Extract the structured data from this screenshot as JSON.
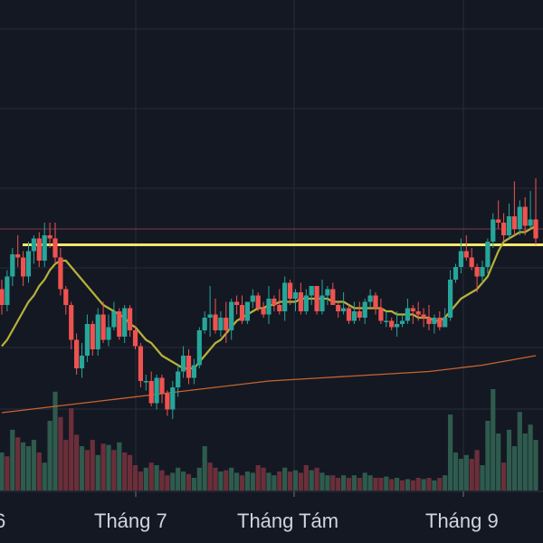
{
  "chart_data": {
    "type": "candlestick",
    "title": "",
    "x_tick_labels": [
      "6",
      "Tháng 7",
      "Tháng Tám",
      "Tháng 9"
    ],
    "grid": true,
    "colors": {
      "background": "#141823",
      "grid": "#262b38",
      "up": "#26a69a",
      "down": "#ef5350",
      "volume_up": "#2e5b4d",
      "volume_down": "#6b2f3a",
      "ma_short": "#b7b13a",
      "ma_long": "#c9632f",
      "resistance": "#f2e86b",
      "faint_level": "#7a3a4a"
    },
    "price_range": [
      0,
      100
    ],
    "volume_range": [
      0,
      100
    ],
    "resistance_level": 77,
    "faint_level": 82,
    "candles": [
      [
        0,
        63,
        58,
        66,
        55
      ],
      [
        1,
        58,
        67,
        69,
        56
      ],
      [
        2,
        67,
        74,
        76,
        64
      ],
      [
        3,
        74,
        73,
        80,
        70
      ],
      [
        4,
        73,
        67,
        75,
        64
      ],
      [
        5,
        67,
        75,
        78,
        65
      ],
      [
        6,
        75,
        79,
        80,
        71
      ],
      [
        7,
        79,
        72,
        81,
        70
      ],
      [
        8,
        72,
        80,
        84,
        70
      ],
      [
        9,
        80,
        79,
        84,
        76
      ],
      [
        10,
        79,
        73,
        84,
        71
      ],
      [
        11,
        73,
        63,
        76,
        61
      ],
      [
        12,
        63,
        58,
        64,
        55
      ],
      [
        13,
        58,
        47,
        59,
        44
      ],
      [
        14,
        47,
        38,
        49,
        36
      ],
      [
        15,
        38,
        42,
        46,
        35
      ],
      [
        16,
        42,
        52,
        55,
        40
      ],
      [
        17,
        52,
        44,
        53,
        42
      ],
      [
        18,
        44,
        55,
        57,
        42
      ],
      [
        19,
        55,
        47,
        59,
        46
      ],
      [
        20,
        47,
        51,
        55,
        45
      ],
      [
        21,
        51,
        56,
        59,
        50
      ],
      [
        22,
        56,
        48,
        57,
        47
      ],
      [
        23,
        48,
        57,
        58,
        46
      ],
      [
        24,
        57,
        50,
        58,
        48
      ],
      [
        25,
        50,
        45,
        51,
        44
      ],
      [
        26,
        45,
        34,
        46,
        32
      ],
      [
        27,
        34,
        34,
        36,
        31
      ],
      [
        28,
        34,
        27,
        37,
        26
      ],
      [
        29,
        27,
        35,
        36,
        25
      ],
      [
        30,
        35,
        30,
        36,
        27
      ],
      [
        31,
        30,
        25,
        31,
        23
      ],
      [
        32,
        25,
        32,
        34,
        22
      ],
      [
        33,
        32,
        37,
        39,
        29
      ],
      [
        34,
        37,
        42,
        45,
        35
      ],
      [
        35,
        42,
        35,
        44,
        33
      ],
      [
        36,
        35,
        39,
        41,
        33
      ],
      [
        37,
        39,
        50,
        51,
        38
      ],
      [
        38,
        50,
        54,
        56,
        49
      ],
      [
        39,
        54,
        55,
        64,
        48
      ],
      [
        40,
        55,
        50,
        60,
        49
      ],
      [
        41,
        50,
        54,
        56,
        48
      ],
      [
        42,
        54,
        50,
        59,
        46
      ],
      [
        43,
        50,
        59,
        60,
        47
      ],
      [
        44,
        59,
        58,
        61,
        55
      ],
      [
        45,
        58,
        53,
        61,
        52
      ],
      [
        46,
        53,
        59,
        59,
        52
      ],
      [
        47,
        59,
        61,
        63,
        57
      ],
      [
        48,
        61,
        57,
        62,
        56
      ],
      [
        49,
        57,
        55,
        59,
        54
      ],
      [
        50,
        55,
        60,
        64,
        52
      ],
      [
        51,
        60,
        58,
        61,
        56
      ],
      [
        52,
        58,
        56,
        63,
        55
      ],
      [
        53,
        56,
        65,
        67,
        53
      ],
      [
        54,
        65,
        60,
        66,
        58
      ],
      [
        55,
        60,
        62,
        63,
        56
      ],
      [
        56,
        62,
        56,
        65,
        55
      ],
      [
        57,
        56,
        61,
        63,
        55
      ],
      [
        58,
        61,
        64,
        64,
        58
      ],
      [
        59,
        64,
        56,
        64,
        55
      ],
      [
        60,
        56,
        61,
        66,
        55
      ],
      [
        61,
        61,
        63,
        64,
        58
      ],
      [
        62,
        63,
        58,
        65,
        58
      ],
      [
        63,
        58,
        56,
        59,
        54
      ],
      [
        64,
        56,
        57,
        62,
        55
      ],
      [
        65,
        57,
        53,
        58,
        52
      ],
      [
        66,
        53,
        56,
        59,
        52
      ],
      [
        67,
        56,
        54,
        59,
        53
      ],
      [
        68,
        54,
        59,
        60,
        52
      ],
      [
        69,
        59,
        61,
        63,
        57
      ],
      [
        70,
        61,
        57,
        62,
        55
      ],
      [
        71,
        57,
        53,
        60,
        52
      ],
      [
        72,
        53,
        53,
        56,
        51
      ],
      [
        73,
        53,
        51,
        54,
        50
      ],
      [
        74,
        51,
        52,
        56,
        48
      ],
      [
        75,
        52,
        53,
        55,
        51
      ],
      [
        76,
        53,
        57,
        60,
        52
      ],
      [
        77,
        57,
        56,
        58,
        52
      ],
      [
        78,
        56,
        55,
        59,
        53
      ],
      [
        79,
        55,
        54,
        57,
        51
      ],
      [
        80,
        54,
        52,
        58,
        50
      ],
      [
        81,
        52,
        54,
        55,
        49
      ],
      [
        82,
        54,
        51,
        56,
        50
      ],
      [
        83,
        51,
        54,
        57,
        51
      ],
      [
        84,
        54,
        66,
        69,
        53
      ],
      [
        85,
        66,
        70,
        71,
        65
      ],
      [
        86,
        70,
        75,
        79,
        68
      ],
      [
        87,
        75,
        73,
        80,
        72
      ],
      [
        88,
        73,
        70,
        76,
        69
      ],
      [
        89,
        70,
        67,
        71,
        62
      ],
      [
        90,
        67,
        70,
        72,
        65
      ],
      [
        91,
        70,
        78,
        79,
        68
      ],
      [
        92,
        78,
        85,
        87,
        76
      ],
      [
        93,
        85,
        84,
        91,
        82
      ],
      [
        94,
        84,
        80,
        87,
        78
      ],
      [
        95,
        80,
        86,
        90,
        79
      ],
      [
        96,
        86,
        82,
        97,
        80
      ],
      [
        97,
        82,
        89,
        91,
        80
      ],
      [
        98,
        89,
        83,
        92,
        80
      ],
      [
        99,
        83,
        85,
        94,
        82
      ],
      [
        100,
        85,
        79,
        98,
        77
      ]
    ],
    "moving_average_short": [
      [
        0,
        45
      ],
      [
        1,
        47
      ],
      [
        2,
        50
      ],
      [
        3,
        53
      ],
      [
        4,
        56
      ],
      [
        5,
        59
      ],
      [
        6,
        61
      ],
      [
        7,
        64
      ],
      [
        8,
        66
      ],
      [
        9,
        69
      ],
      [
        10,
        71
      ],
      [
        11,
        72
      ],
      [
        12,
        72
      ],
      [
        13,
        70
      ],
      [
        14,
        68
      ],
      [
        15,
        66
      ],
      [
        16,
        64
      ],
      [
        17,
        62
      ],
      [
        18,
        60
      ],
      [
        19,
        58
      ],
      [
        20,
        57
      ],
      [
        21,
        56
      ],
      [
        22,
        55
      ],
      [
        23,
        54
      ],
      [
        24,
        52
      ],
      [
        25,
        51
      ],
      [
        26,
        49
      ],
      [
        27,
        47
      ],
      [
        28,
        46
      ],
      [
        29,
        44
      ],
      [
        30,
        42
      ],
      [
        31,
        41
      ],
      [
        32,
        40
      ],
      [
        33,
        39
      ],
      [
        34,
        38
      ],
      [
        35,
        38
      ],
      [
        36,
        38
      ],
      [
        37,
        40
      ],
      [
        38,
        42
      ],
      [
        39,
        44
      ],
      [
        40,
        46
      ],
      [
        41,
        47
      ],
      [
        42,
        49
      ],
      [
        43,
        51
      ],
      [
        44,
        53
      ],
      [
        45,
        54
      ],
      [
        46,
        55
      ],
      [
        47,
        56
      ],
      [
        48,
        57
      ],
      [
        49,
        57
      ],
      [
        50,
        58
      ],
      [
        51,
        58
      ],
      [
        52,
        59
      ],
      [
        53,
        59
      ],
      [
        54,
        59
      ],
      [
        55,
        59
      ],
      [
        56,
        60
      ],
      [
        57,
        60
      ],
      [
        58,
        60
      ],
      [
        59,
        60
      ],
      [
        60,
        60
      ],
      [
        61,
        60
      ],
      [
        62,
        59
      ],
      [
        63,
        59
      ],
      [
        64,
        59
      ],
      [
        65,
        58
      ],
      [
        66,
        57
      ],
      [
        67,
        57
      ],
      [
        68,
        57
      ],
      [
        69,
        57
      ],
      [
        70,
        57
      ],
      [
        71,
        57
      ],
      [
        72,
        56
      ],
      [
        73,
        56
      ],
      [
        74,
        55
      ],
      [
        75,
        55
      ],
      [
        76,
        55
      ],
      [
        77,
        55
      ],
      [
        78,
        54
      ],
      [
        79,
        54
      ],
      [
        80,
        54
      ],
      [
        81,
        53
      ],
      [
        82,
        53
      ],
      [
        83,
        54
      ],
      [
        84,
        56
      ],
      [
        85,
        58
      ],
      [
        86,
        60
      ],
      [
        87,
        61
      ],
      [
        88,
        62
      ],
      [
        89,
        63
      ],
      [
        90,
        65
      ],
      [
        91,
        67
      ],
      [
        92,
        71
      ],
      [
        93,
        75
      ],
      [
        94,
        78
      ],
      [
        95,
        79
      ],
      [
        96,
        80
      ],
      [
        97,
        81
      ],
      [
        98,
        81
      ],
      [
        99,
        82
      ],
      [
        100,
        83
      ]
    ],
    "moving_average_long": [
      [
        0,
        24
      ],
      [
        10,
        26
      ],
      [
        20,
        28
      ],
      [
        30,
        30
      ],
      [
        40,
        32
      ],
      [
        50,
        34
      ],
      [
        60,
        35
      ],
      [
        70,
        36
      ],
      [
        80,
        37
      ],
      [
        90,
        39
      ],
      [
        100,
        42
      ]
    ],
    "volume_bars": [
      [
        0,
        30,
        "up"
      ],
      [
        1,
        27,
        "down"
      ],
      [
        2,
        48,
        "up"
      ],
      [
        3,
        42,
        "down"
      ],
      [
        4,
        38,
        "up"
      ],
      [
        5,
        35,
        "up"
      ],
      [
        6,
        40,
        "up"
      ],
      [
        7,
        30,
        "down"
      ],
      [
        8,
        22,
        "up"
      ],
      [
        9,
        55,
        "up"
      ],
      [
        10,
        78,
        "up"
      ],
      [
        11,
        58,
        "down"
      ],
      [
        12,
        40,
        "down"
      ],
      [
        13,
        65,
        "down"
      ],
      [
        14,
        44,
        "down"
      ],
      [
        15,
        35,
        "up"
      ],
      [
        16,
        32,
        "down"
      ],
      [
        17,
        40,
        "down"
      ],
      [
        18,
        28,
        "up"
      ],
      [
        19,
        37,
        "down"
      ],
      [
        20,
        36,
        "up"
      ],
      [
        21,
        32,
        "down"
      ],
      [
        22,
        38,
        "up"
      ],
      [
        23,
        30,
        "down"
      ],
      [
        24,
        28,
        "down"
      ],
      [
        25,
        20,
        "down"
      ],
      [
        26,
        15,
        "down"
      ],
      [
        27,
        18,
        "up"
      ],
      [
        28,
        22,
        "down"
      ],
      [
        29,
        20,
        "up"
      ],
      [
        30,
        16,
        "down"
      ],
      [
        31,
        12,
        "down"
      ],
      [
        32,
        14,
        "up"
      ],
      [
        33,
        18,
        "up"
      ],
      [
        34,
        15,
        "up"
      ],
      [
        35,
        13,
        "down"
      ],
      [
        36,
        10,
        "up"
      ],
      [
        37,
        18,
        "up"
      ],
      [
        38,
        35,
        "up"
      ],
      [
        39,
        22,
        "down"
      ],
      [
        40,
        18,
        "down"
      ],
      [
        41,
        15,
        "up"
      ],
      [
        42,
        16,
        "down"
      ],
      [
        43,
        18,
        "up"
      ],
      [
        44,
        14,
        "up"
      ],
      [
        45,
        12,
        "down"
      ],
      [
        46,
        15,
        "up"
      ],
      [
        47,
        14,
        "up"
      ],
      [
        48,
        20,
        "down"
      ],
      [
        49,
        18,
        "down"
      ],
      [
        50,
        14,
        "up"
      ],
      [
        51,
        12,
        "up"
      ],
      [
        52,
        15,
        "down"
      ],
      [
        53,
        18,
        "up"
      ],
      [
        54,
        15,
        "down"
      ],
      [
        55,
        16,
        "up"
      ],
      [
        56,
        14,
        "down"
      ],
      [
        57,
        20,
        "down"
      ],
      [
        58,
        16,
        "up"
      ],
      [
        59,
        18,
        "down"
      ],
      [
        60,
        14,
        "up"
      ],
      [
        61,
        12,
        "up"
      ],
      [
        62,
        12,
        "down"
      ],
      [
        63,
        10,
        "down"
      ],
      [
        64,
        12,
        "up"
      ],
      [
        65,
        10,
        "down"
      ],
      [
        66,
        12,
        "up"
      ],
      [
        67,
        10,
        "down"
      ],
      [
        68,
        14,
        "up"
      ],
      [
        69,
        12,
        "up"
      ],
      [
        70,
        10,
        "down"
      ],
      [
        71,
        10,
        "down"
      ],
      [
        72,
        11,
        "up"
      ],
      [
        73,
        9,
        "down"
      ],
      [
        74,
        10,
        "up"
      ],
      [
        75,
        8,
        "down"
      ],
      [
        76,
        9,
        "up"
      ],
      [
        77,
        8,
        "down"
      ],
      [
        78,
        10,
        "down"
      ],
      [
        79,
        9,
        "up"
      ],
      [
        80,
        10,
        "down"
      ],
      [
        81,
        8,
        "up"
      ],
      [
        82,
        10,
        "down"
      ],
      [
        83,
        12,
        "up"
      ],
      [
        84,
        60,
        "up"
      ],
      [
        85,
        30,
        "up"
      ],
      [
        86,
        25,
        "up"
      ],
      [
        87,
        28,
        "up"
      ],
      [
        88,
        25,
        "down"
      ],
      [
        89,
        32,
        "down"
      ],
      [
        90,
        20,
        "up"
      ],
      [
        91,
        55,
        "up"
      ],
      [
        92,
        80,
        "up"
      ],
      [
        93,
        45,
        "up"
      ],
      [
        94,
        22,
        "down"
      ],
      [
        95,
        48,
        "up"
      ],
      [
        96,
        35,
        "up"
      ],
      [
        97,
        62,
        "up"
      ],
      [
        98,
        45,
        "up"
      ],
      [
        99,
        52,
        "up"
      ],
      [
        100,
        40,
        "up"
      ]
    ]
  }
}
